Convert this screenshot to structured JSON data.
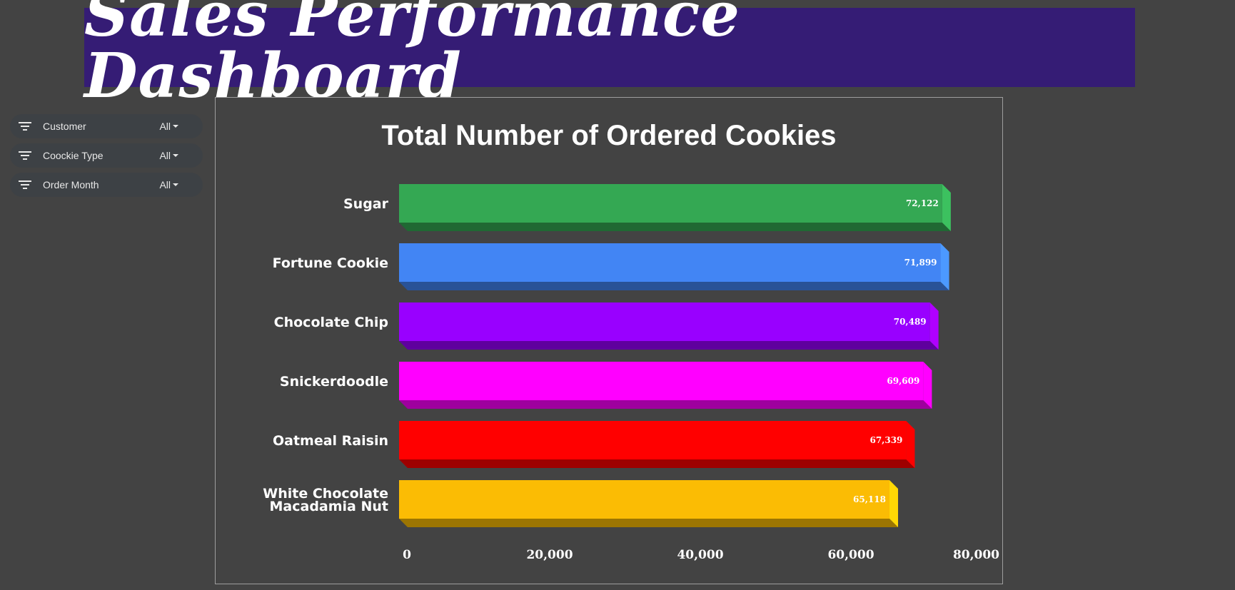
{
  "dashboard": {
    "title": "Sales Performance Dashboard"
  },
  "filters": [
    {
      "label": "Customer",
      "value": "All"
    },
    {
      "label": "Coockie Type",
      "value": "All"
    },
    {
      "label": "Order Month",
      "value": "All"
    }
  ],
  "colors": {
    "page_bg": "#434343",
    "banner_bg": "#351c75"
  },
  "chart_data": {
    "type": "bar",
    "orientation": "horizontal",
    "style": "3d",
    "title": "Total Number of Ordered Cookies",
    "xlabel": "",
    "ylabel": "",
    "xlim": [
      0,
      80000
    ],
    "ticks": [
      0,
      20000,
      40000,
      60000,
      80000
    ],
    "tick_labels": [
      "0",
      "20,000",
      "40,000",
      "60,000",
      "80,000"
    ],
    "grid": false,
    "categories": [
      "Sugar",
      "Fortune Cookie",
      "Chocolate Chip",
      "Snickerdoodle",
      "Oatmeal Raisin",
      "White Chocolate Macadamia Nut"
    ],
    "category_lines": [
      [
        "Sugar"
      ],
      [
        "Fortune Cookie"
      ],
      [
        "Chocolate Chip"
      ],
      [
        "Snickerdoodle"
      ],
      [
        "Oatmeal Raisin"
      ],
      [
        "White Chocolate",
        "Macadamia Nut"
      ]
    ],
    "values": [
      72122,
      71899,
      70489,
      69609,
      67339,
      65118
    ],
    "value_labels": [
      "72,122",
      "71,899",
      "70,489",
      "69,609",
      "67,339",
      "65,118"
    ],
    "bar_colors": [
      "#34a853",
      "#4285f4",
      "#9900ff",
      "#ff00ff",
      "#ff0000",
      "#fbbc04"
    ]
  }
}
